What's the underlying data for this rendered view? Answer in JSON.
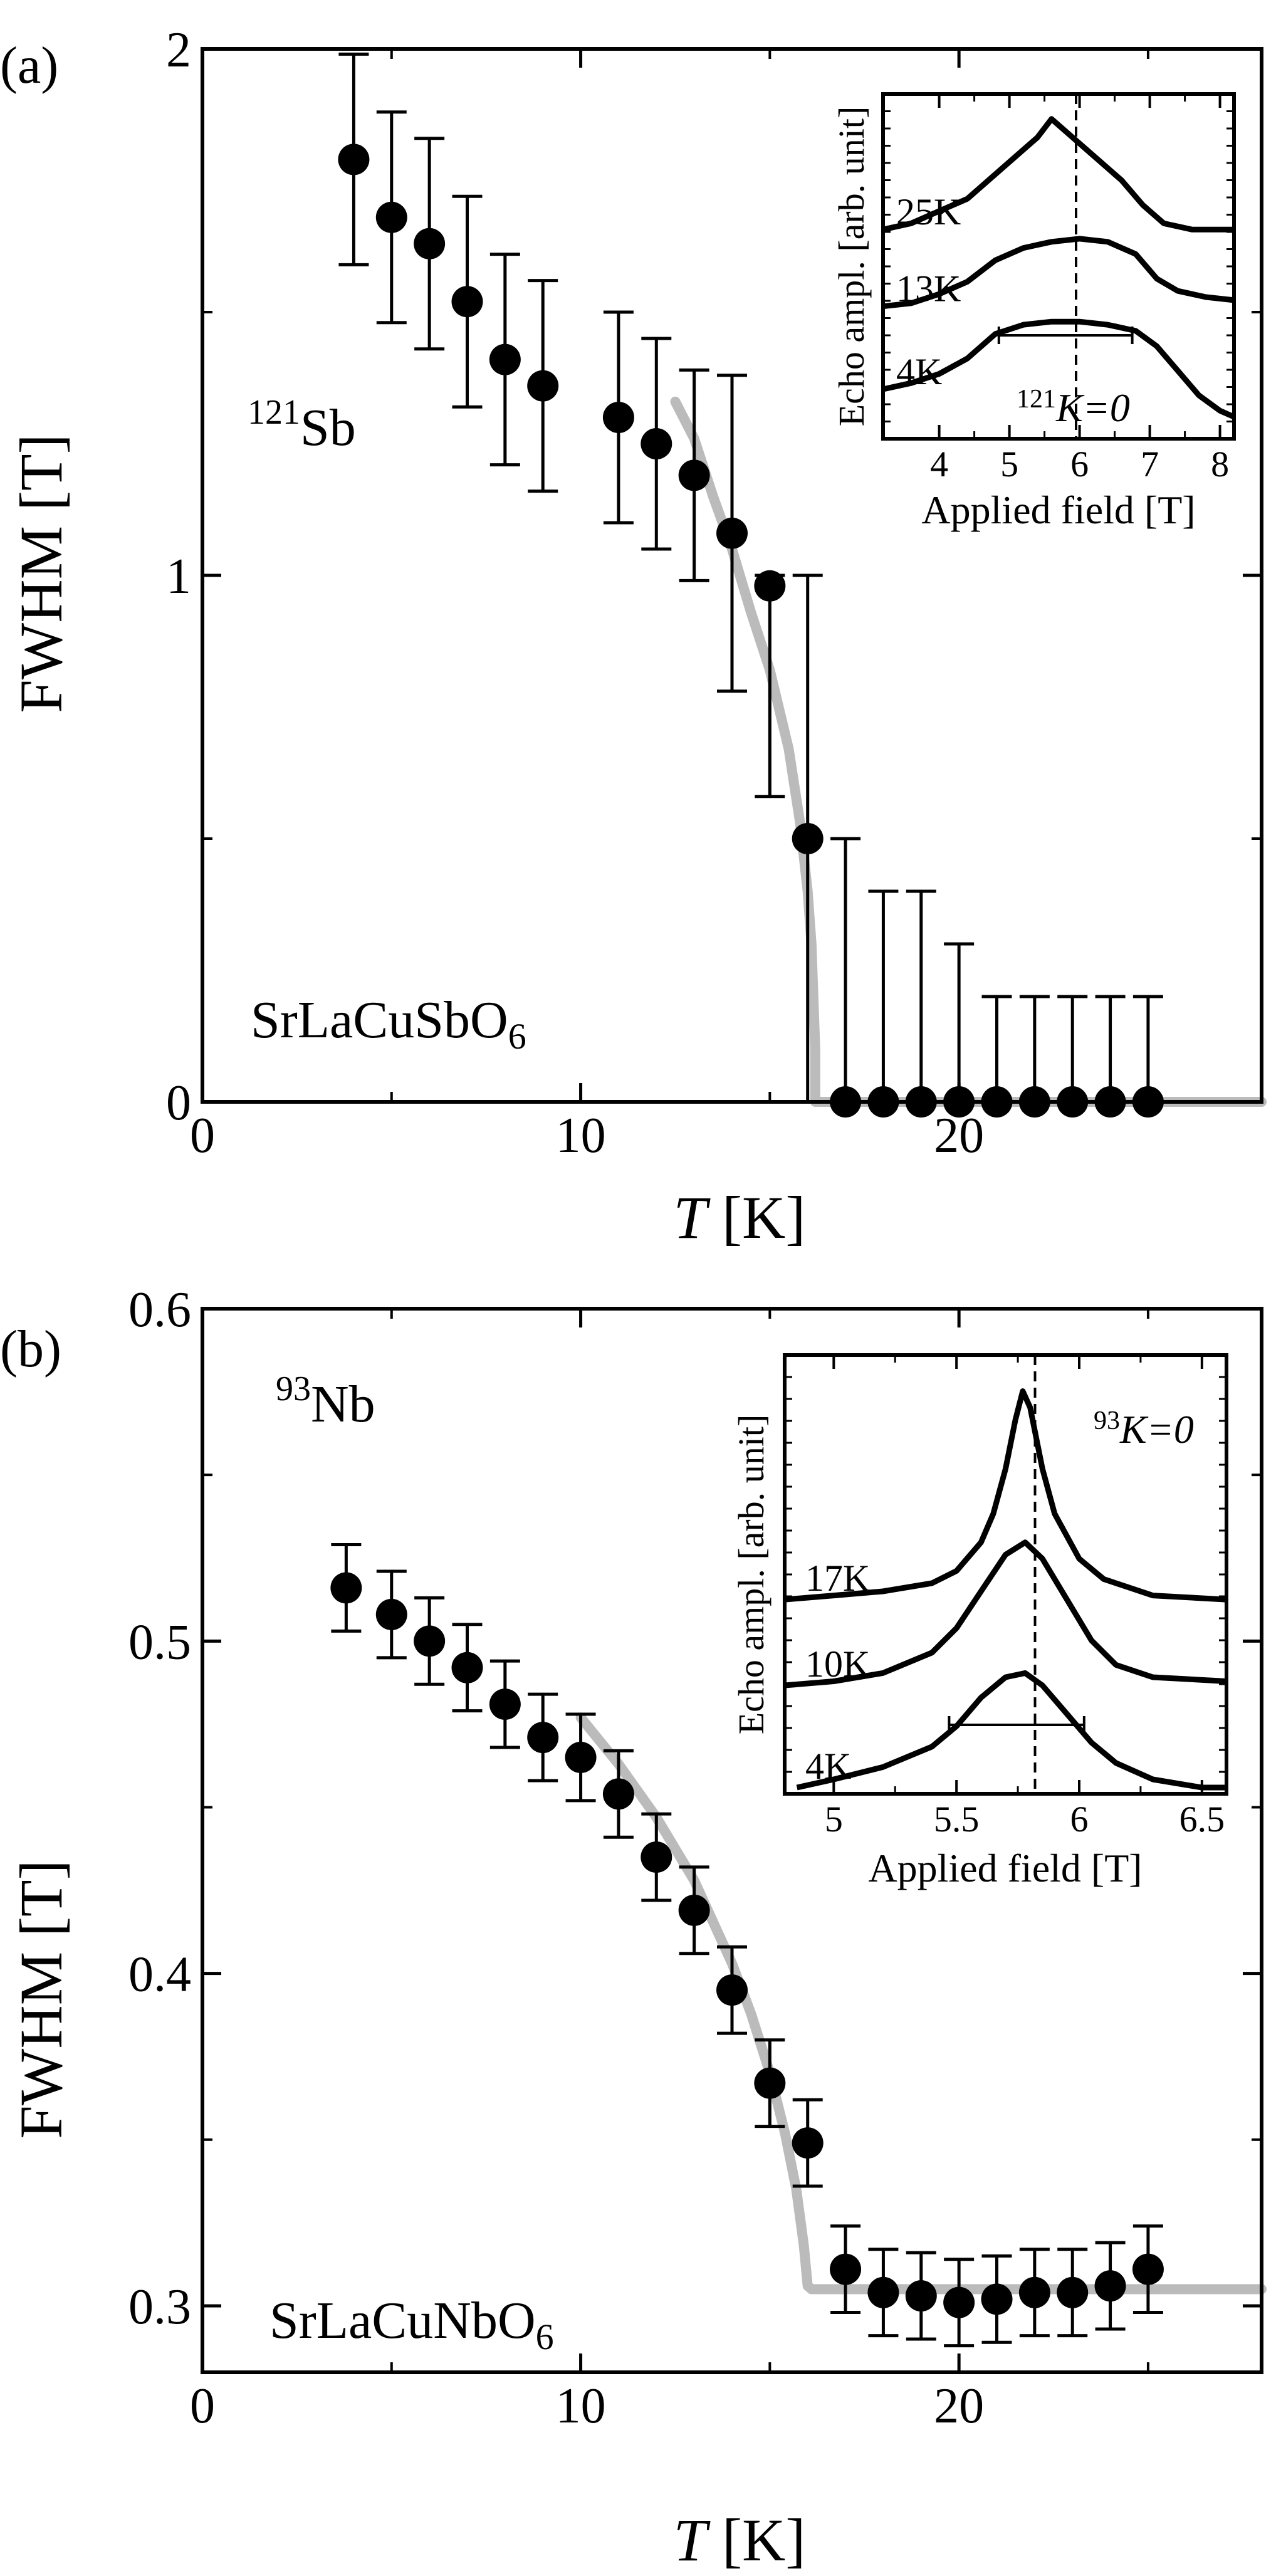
{
  "chart_data": [
    {
      "type": "scatter",
      "panel_label": "(a)",
      "xlabel_italic": "T",
      "xlabel_unit": " [K]",
      "ylabel": "FWHM [T]",
      "xlim": [
        0,
        28
      ],
      "ylim": [
        0,
        2
      ],
      "xticks": [
        0,
        10,
        20
      ],
      "yticks": [
        0,
        1,
        2
      ],
      "ytick_labels": [
        "0",
        "1",
        "2"
      ],
      "nucleus_mass": "121",
      "nucleus_symbol": "Sb",
      "compound_main": "SrLaCuSbO",
      "compound_sub": "6",
      "series": [
        {
          "name": "FWHM",
          "x": [
            4,
            5,
            6,
            7,
            8,
            9,
            11,
            12,
            13,
            14,
            15,
            16,
            17,
            18,
            19,
            20,
            21,
            22,
            23,
            24,
            25
          ],
          "y": [
            1.79,
            1.68,
            1.63,
            1.52,
            1.41,
            1.36,
            1.3,
            1.25,
            1.19,
            1.08,
            0.98,
            0.5,
            0,
            0,
            0,
            0,
            0,
            0,
            0,
            0,
            0
          ],
          "err_low": [
            0.2,
            0.2,
            0.2,
            0.2,
            0.2,
            0.2,
            0.2,
            0.2,
            0.2,
            0.3,
            0.4,
            0.5,
            0,
            0,
            0,
            0,
            0,
            0,
            0,
            0,
            0
          ],
          "err_high": [
            0.2,
            0.2,
            0.2,
            0.2,
            0.2,
            0.2,
            0.2,
            0.2,
            0.2,
            0.3,
            0.02,
            0.5,
            0.5,
            0.4,
            0.4,
            0.3,
            0.2,
            0.2,
            0.2,
            0.2,
            0.2
          ]
        }
      ],
      "fit_curve": {
        "color": "#bbbbbb",
        "x": [
          12.5,
          13,
          13.5,
          14,
          14.5,
          15,
          15.5,
          15.8,
          16,
          16.1,
          16.2,
          16.2,
          17,
          28
        ],
        "y": [
          1.33,
          1.26,
          1.15,
          1.05,
          0.93,
          0.82,
          0.67,
          0.53,
          0.4,
          0.3,
          0.1,
          0,
          0,
          0
        ]
      },
      "inset": {
        "xlabel": "Applied field [T]",
        "ylabel": "Echo ampl. [arb. unit]",
        "xlim": [
          3.2,
          8.2
        ],
        "xticks": [
          4,
          5,
          6,
          7,
          8
        ],
        "reference_x": 5.95,
        "reference_label_sup": "121",
        "reference_label_main": "K=0",
        "width_bar": [
          4.85,
          6.75
        ],
        "traces": [
          {
            "label": "25K",
            "x": [
              3.2,
              3.6,
              4.0,
              4.4,
              4.8,
              5.0,
              5.2,
              5.4,
              5.6,
              5.8,
              6.0,
              6.3,
              6.6,
              6.9,
              7.2,
              7.6,
              8.2
            ],
            "y": [
              0.62,
              0.64,
              0.68,
              0.72,
              0.8,
              0.84,
              0.88,
              0.92,
              0.98,
              0.94,
              0.9,
              0.84,
              0.78,
              0.7,
              0.64,
              0.62,
              0.62
            ]
          },
          {
            "label": "13K",
            "x": [
              3.2,
              3.6,
              4.0,
              4.4,
              4.8,
              5.2,
              5.6,
              6.0,
              6.4,
              6.8,
              7.1,
              7.4,
              7.8,
              8.2
            ],
            "y": [
              0.37,
              0.38,
              0.41,
              0.45,
              0.52,
              0.56,
              0.58,
              0.59,
              0.58,
              0.54,
              0.46,
              0.42,
              0.4,
              0.39
            ]
          },
          {
            "label": "4K",
            "x": [
              3.2,
              3.6,
              4.0,
              4.4,
              4.8,
              5.2,
              5.6,
              6.0,
              6.4,
              6.8,
              7.1,
              7.4,
              7.7,
              8.0,
              8.2
            ],
            "y": [
              0.1,
              0.12,
              0.15,
              0.2,
              0.28,
              0.31,
              0.32,
              0.32,
              0.31,
              0.29,
              0.24,
              0.16,
              0.08,
              0.03,
              0.01
            ]
          }
        ]
      }
    },
    {
      "type": "scatter",
      "panel_label": "(b)",
      "xlabel_italic": "T",
      "xlabel_unit": " [K]",
      "ylabel": "FWHM [T]",
      "xlim": [
        0,
        28
      ],
      "ylim": [
        0.28,
        0.6
      ],
      "xticks": [
        0,
        10,
        20
      ],
      "yticks": [
        0.3,
        0.4,
        0.5,
        0.6
      ],
      "ytick_labels": [
        "0.3",
        "0.4",
        "0.5",
        "0.6"
      ],
      "nucleus_mass": "93",
      "nucleus_symbol": "Nb",
      "compound_main": "SrLaCuNbO",
      "compound_sub": "6",
      "series": [
        {
          "name": "FWHM",
          "x": [
            3.8,
            5,
            6,
            7,
            8,
            9,
            10,
            11,
            12,
            13,
            14,
            15,
            16,
            17,
            18,
            19,
            20,
            21,
            22,
            23,
            24,
            25
          ],
          "y": [
            0.516,
            0.508,
            0.5,
            0.492,
            0.481,
            0.471,
            0.465,
            0.454,
            0.435,
            0.419,
            0.395,
            0.367,
            0.349,
            0.311,
            0.304,
            0.303,
            0.301,
            0.302,
            0.304,
            0.304,
            0.306,
            0.311
          ],
          "err_low": [
            0.013,
            0.013,
            0.013,
            0.013,
            0.013,
            0.013,
            0.013,
            0.013,
            0.013,
            0.013,
            0.013,
            0.013,
            0.013,
            0.013,
            0.013,
            0.013,
            0.013,
            0.013,
            0.013,
            0.013,
            0.013,
            0.013
          ],
          "err_high": [
            0.013,
            0.013,
            0.013,
            0.013,
            0.013,
            0.013,
            0.013,
            0.013,
            0.013,
            0.013,
            0.013,
            0.013,
            0.013,
            0.013,
            0.013,
            0.013,
            0.013,
            0.013,
            0.013,
            0.013,
            0.013,
            0.013
          ]
        }
      ],
      "fit_curve": {
        "color": "#bbbbbb",
        "x": [
          10,
          11,
          12,
          13,
          14,
          14.5,
          15,
          15.4,
          15.7,
          15.9,
          16,
          16.1,
          28
        ],
        "y": [
          0.477,
          0.463,
          0.447,
          0.428,
          0.403,
          0.388,
          0.37,
          0.352,
          0.335,
          0.318,
          0.306,
          0.305,
          0.305
        ]
      },
      "inset": {
        "xlabel": "Applied field [T]",
        "ylabel": "Echo ampl. [arb. unit]",
        "xlim": [
          4.8,
          6.6
        ],
        "xticks": [
          5,
          5.5,
          6,
          6.5
        ],
        "xtick_labels": [
          "5",
          "5.5",
          "6",
          "6.5"
        ],
        "reference_x": 5.82,
        "reference_label_sup": "93",
        "reference_label_main": "K=0",
        "width_bar": [
          5.47,
          6.02
        ],
        "traces": [
          {
            "label": "17K",
            "x": [
              4.8,
              5.0,
              5.2,
              5.4,
              5.5,
              5.6,
              5.65,
              5.7,
              5.74,
              5.77,
              5.8,
              5.85,
              5.9,
              6.0,
              6.1,
              6.2,
              6.3,
              6.6
            ],
            "y": [
              0.46,
              0.47,
              0.48,
              0.5,
              0.53,
              0.6,
              0.67,
              0.78,
              0.9,
              0.97,
              0.93,
              0.78,
              0.67,
              0.56,
              0.51,
              0.49,
              0.47,
              0.46
            ]
          },
          {
            "label": "10K",
            "x": [
              4.8,
              5.0,
              5.2,
              5.4,
              5.5,
              5.6,
              5.7,
              5.78,
              5.85,
              5.95,
              6.05,
              6.15,
              6.3,
              6.6
            ],
            "y": [
              0.25,
              0.26,
              0.28,
              0.33,
              0.39,
              0.48,
              0.57,
              0.6,
              0.56,
              0.46,
              0.36,
              0.3,
              0.27,
              0.26
            ]
          },
          {
            "label": "4K",
            "x": [
              4.85,
              5.0,
              5.2,
              5.4,
              5.5,
              5.6,
              5.7,
              5.78,
              5.85,
              5.95,
              6.05,
              6.15,
              6.3,
              6.5,
              6.6
            ],
            "y": [
              0.0,
              0.02,
              0.05,
              0.1,
              0.15,
              0.22,
              0.27,
              0.28,
              0.25,
              0.18,
              0.11,
              0.06,
              0.02,
              0.0,
              0.0
            ]
          }
        ]
      }
    }
  ]
}
